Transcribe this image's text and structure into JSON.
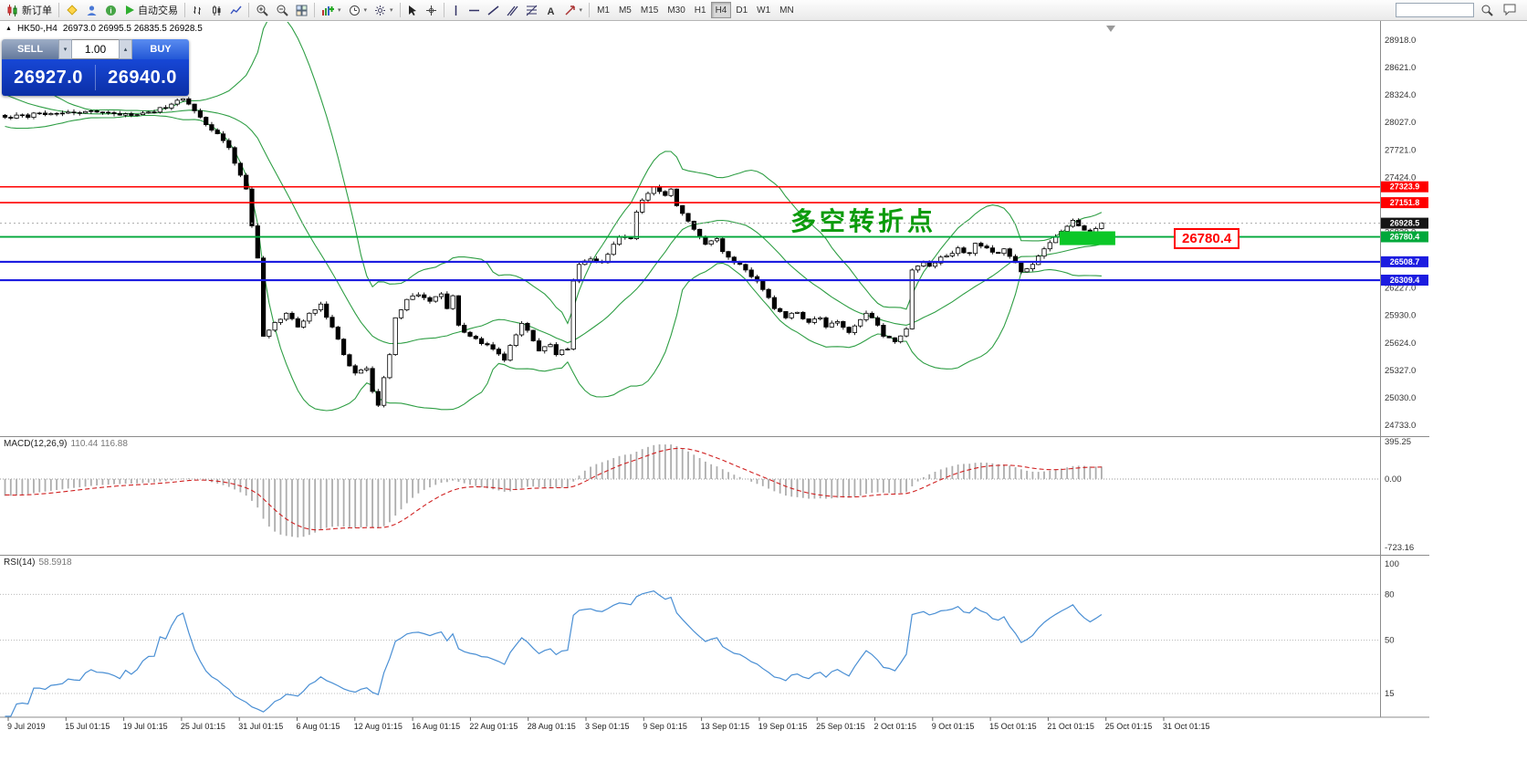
{
  "toolbar": {
    "new_order": "新订单",
    "autotrading": "自动交易",
    "timeframes": [
      "M1",
      "M5",
      "M15",
      "M30",
      "H1",
      "H4",
      "D1",
      "W1",
      "MN"
    ],
    "active_timeframe": "H4",
    "search_value": ""
  },
  "chart": {
    "symbol_period": "HK50-,H4",
    "ohlc": "26973.0 26995.5 26835.5 26928.5"
  },
  "one_click": {
    "sell_label": "SELL",
    "buy_label": "BUY",
    "volume": "1.00",
    "sell_price": "26927.0",
    "buy_price": "26940.0"
  },
  "annotation": "多空转折点",
  "callout": "26780.4",
  "indicators": {
    "macd_label": "MACD(12,26,9)",
    "macd_values": "110.44 116.88",
    "rsi_label": "RSI(14)",
    "rsi_value": "58.5918"
  },
  "colors": {
    "hline_red": "#FF0000",
    "hline_green": "#00A83A",
    "hline_blue": "#1C1CE0",
    "band_green": "#2E9E44",
    "highlight_green": "#0BC727",
    "annotation_green": "#0B9B0B",
    "rsi_blue": "#4A8FD4",
    "macd_signal_red": "#D02020",
    "macd_histogram_gray": "#ADADAD"
  },
  "chart_data": {
    "type": "candlestick",
    "symbol": "HK50-",
    "period": "H4",
    "price_axis": {
      "top_value": 28918.0,
      "bottom_value": 24733.0,
      "labels": [
        "28918.0",
        "28621.0",
        "28324.0",
        "28027.0",
        "27721.0",
        "27424.0",
        "27127.0",
        "26830.0",
        "26533.0",
        "26227.0",
        "25930.0",
        "25624.0",
        "25327.0",
        "25030.0",
        "24733.0"
      ]
    },
    "hlines": [
      {
        "label": "27323.9",
        "value": 27323.9,
        "color": "#FF0000",
        "width": 1.6
      },
      {
        "label": "27151.8",
        "value": 27151.8,
        "color": "#FF0000",
        "width": 1.6
      },
      {
        "label": "26780.4",
        "value": 26780.4,
        "color": "#00A83A",
        "width": 1.8
      },
      {
        "label": "26508.7",
        "value": 26508.7,
        "color": "#1C1CE0",
        "width": 2.2
      },
      {
        "label": "26309.4",
        "value": 26309.4,
        "color": "#1C1CE0",
        "width": 2.2
      }
    ],
    "current_price": {
      "label": "26928.5",
      "value": 26928.5,
      "tag_color": "#151515"
    },
    "highlight_rect": {
      "start_index": 184,
      "end_index": 193.7,
      "top_price": 26840,
      "bottom_price": 26690,
      "color": "#0BC727"
    },
    "bollinger": {
      "period": 20,
      "deviation": 2,
      "color": "#2E9E44"
    },
    "macd": {
      "params": "12,26,9",
      "top_value": 395.25,
      "bottom_value": -723.16,
      "axis_labels": [
        "395.25",
        "0.00",
        "-723.16"
      ],
      "histogram_color": "#ADADAD",
      "signal_color": "#D02020"
    },
    "rsi": {
      "period": 14,
      "axis_labels": [
        "100",
        "80",
        "50",
        "15"
      ],
      "levels": [
        80,
        50,
        15
      ],
      "color": "#4A8FD4"
    },
    "time_axis": [
      "9 Jul 2019",
      "15 Jul 01:15",
      "19 Jul 01:15",
      "25 Jul 01:15",
      "31 Jul 01:15",
      "6 Aug 01:15",
      "12 Aug 01:15",
      "16 Aug 01:15",
      "22 Aug 01:15",
      "28 Aug 01:15",
      "3 Sep 01:15",
      "9 Sep 01:15",
      "13 Sep 01:15",
      "19 Sep 01:15",
      "25 Sep 01:15",
      "2 Oct 01:15",
      "9 Oct 01:15",
      "15 Oct 01:15",
      "21 Oct 01:15",
      "25 Oct 01:15",
      "31 Oct 01:15"
    ],
    "candles": {
      "count": 192,
      "prehistory": 26,
      "anchors": [
        [
          -26,
          28950
        ],
        [
          -20,
          28700
        ],
        [
          -14,
          28450
        ],
        [
          -8,
          28260
        ],
        [
          -4,
          28150
        ],
        [
          0,
          28080
        ],
        [
          8,
          28120
        ],
        [
          15,
          28150
        ],
        [
          22,
          28100
        ],
        [
          28,
          28180
        ],
        [
          31,
          28280
        ],
        [
          33,
          28150
        ],
        [
          35,
          28000
        ],
        [
          37,
          27900
        ],
        [
          39,
          27750
        ],
        [
          41,
          27450
        ],
        [
          42,
          27300
        ],
        [
          43,
          26900
        ],
        [
          44,
          26550
        ],
        [
          45,
          25700
        ],
        [
          47,
          25850
        ],
        [
          49,
          25950
        ],
        [
          51,
          25800
        ],
        [
          53,
          25950
        ],
        [
          55,
          26050
        ],
        [
          57,
          25800
        ],
        [
          59,
          25500
        ],
        [
          61,
          25300
        ],
        [
          63,
          25350
        ],
        [
          64,
          25100
        ],
        [
          65,
          24950
        ],
        [
          66,
          25250
        ],
        [
          67,
          25500
        ],
        [
          68,
          25900
        ],
        [
          70,
          26100
        ],
        [
          72,
          26150
        ],
        [
          74,
          26080
        ],
        [
          76,
          26160
        ],
        [
          77,
          26000
        ],
        [
          78,
          26140
        ],
        [
          79,
          25820
        ],
        [
          81,
          25700
        ],
        [
          83,
          25620
        ],
        [
          85,
          25560
        ],
        [
          87,
          25440
        ],
        [
          88,
          25600
        ],
        [
          90,
          25840
        ],
        [
          92,
          25650
        ],
        [
          93,
          25540
        ],
        [
          95,
          25610
        ],
        [
          96,
          25500
        ],
        [
          98,
          25560
        ],
        [
          99,
          26300
        ],
        [
          100,
          26480
        ],
        [
          102,
          26540
        ],
        [
          104,
          26500
        ],
        [
          106,
          26700
        ],
        [
          107,
          26780
        ],
        [
          109,
          26760
        ],
        [
          110,
          27050
        ],
        [
          111,
          27180
        ],
        [
          113,
          27320
        ],
        [
          115,
          27230
        ],
        [
          116,
          27300
        ],
        [
          117,
          27120
        ],
        [
          119,
          26950
        ],
        [
          121,
          26780
        ],
        [
          122,
          26700
        ],
        [
          124,
          26760
        ],
        [
          125,
          26620
        ],
        [
          127,
          26500
        ],
        [
          129,
          26420
        ],
        [
          131,
          26300
        ],
        [
          133,
          26120
        ],
        [
          134,
          26000
        ],
        [
          136,
          25900
        ],
        [
          138,
          25960
        ],
        [
          140,
          25850
        ],
        [
          142,
          25900
        ],
        [
          143,
          25800
        ],
        [
          145,
          25860
        ],
        [
          147,
          25740
        ],
        [
          149,
          25880
        ],
        [
          150,
          25950
        ],
        [
          152,
          25820
        ],
        [
          153,
          25700
        ],
        [
          155,
          25640
        ],
        [
          157,
          25780
        ],
        [
          158,
          26420
        ],
        [
          160,
          26500
        ],
        [
          161,
          26460
        ],
        [
          163,
          26560
        ],
        [
          165,
          26600
        ],
        [
          166,
          26660
        ],
        [
          168,
          26600
        ],
        [
          169,
          26710
        ],
        [
          171,
          26660
        ],
        [
          173,
          26600
        ],
        [
          174,
          26650
        ],
        [
          176,
          26500
        ],
        [
          177,
          26400
        ],
        [
          179,
          26480
        ],
        [
          181,
          26650
        ],
        [
          183,
          26780
        ],
        [
          184,
          26840
        ],
        [
          186,
          26960
        ],
        [
          187,
          26900
        ],
        [
          189,
          26820
        ],
        [
          190,
          26870
        ],
        [
          191,
          26928.5
        ]
      ]
    }
  }
}
